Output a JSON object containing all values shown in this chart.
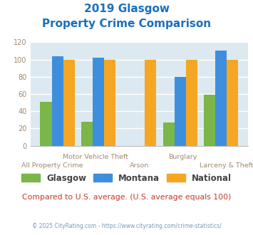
{
  "title_line1": "2019 Glasgow",
  "title_line2": "Property Crime Comparison",
  "title_color": "#1a6fbd",
  "categories": [
    "All Property Crime",
    "Motor Vehicle Theft",
    "Arson",
    "Burglary",
    "Larceny & Theft"
  ],
  "labels_row1": [
    [
      1,
      "Motor Vehicle Theft"
    ],
    [
      3,
      "Burglary"
    ]
  ],
  "labels_row2": [
    [
      0,
      "All Property Crime"
    ],
    [
      2,
      "Arson"
    ],
    [
      4,
      "Larceny & Theft"
    ]
  ],
  "glasgow": [
    51,
    28,
    0,
    27,
    59
  ],
  "montana": [
    104,
    102,
    0,
    80,
    110
  ],
  "national": [
    100,
    100,
    100,
    100,
    100
  ],
  "glasgow_color": "#7ab648",
  "montana_color": "#3d8fde",
  "national_color": "#f5a623",
  "ylim": [
    0,
    120
  ],
  "yticks": [
    0,
    20,
    40,
    60,
    80,
    100,
    120
  ],
  "bg_color": "#dce9f0",
  "grid_color": "#ffffff",
  "note": "Compared to U.S. average. (U.S. average equals 100)",
  "note_color": "#c0392b",
  "footer": "© 2025 CityRating.com - https://www.cityrating.com/crime-statistics/",
  "footer_color": "#7a9ab8",
  "bar_width": 0.28,
  "label_color": "#a08870",
  "label_fontsize": 6.8,
  "ytick_color": "#a08870"
}
